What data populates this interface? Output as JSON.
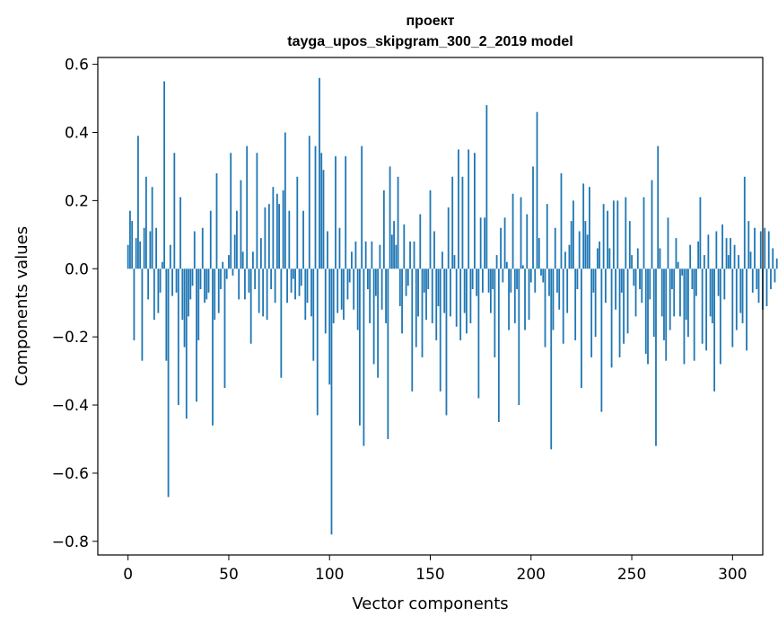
{
  "chart_data": {
    "type": "bar",
    "title_lines": [
      "проект",
      "tayga_upos_skipgram_300_2_2019 model"
    ],
    "xlabel": "Vector components",
    "ylabel": "Components values",
    "xlim": [
      -15,
      315
    ],
    "ylim": [
      -0.84,
      0.62
    ],
    "xticks": [
      0,
      50,
      100,
      150,
      200,
      250,
      300
    ],
    "xtick_labels": [
      "0",
      "50",
      "100",
      "150",
      "200",
      "250",
      "300"
    ],
    "yticks": [
      0.6,
      0.4,
      0.2,
      0.0,
      -0.2,
      -0.4,
      -0.6,
      -0.8
    ],
    "ytick_labels": [
      "0.6",
      "0.4",
      "0.2",
      "0.0",
      "−0.2",
      "−0.4",
      "−0.6",
      "−0.8"
    ],
    "bar_color": "#1f77b4",
    "values": [
      0.07,
      0.17,
      0.14,
      -0.21,
      0.09,
      0.39,
      0.08,
      -0.27,
      0.12,
      0.27,
      -0.09,
      0.11,
      0.24,
      -0.15,
      0.12,
      -0.13,
      -0.07,
      0.02,
      0.55,
      -0.27,
      -0.67,
      0.07,
      -0.08,
      0.34,
      -0.07,
      -0.4,
      0.21,
      -0.15,
      -0.23,
      -0.44,
      -0.14,
      -0.09,
      -0.05,
      0.11,
      -0.39,
      -0.21,
      -0.06,
      0.12,
      -0.1,
      -0.09,
      -0.07,
      0.17,
      -0.46,
      -0.15,
      0.28,
      -0.13,
      -0.06,
      0.02,
      -0.35,
      -0.03,
      0.04,
      0.34,
      -0.02,
      0.1,
      0.17,
      -0.09,
      0.26,
      0.05,
      -0.09,
      0.36,
      -0.07,
      -0.22,
      0.05,
      -0.06,
      0.34,
      -0.13,
      0.09,
      -0.14,
      0.18,
      -0.15,
      0.19,
      -0.06,
      0.24,
      -0.1,
      0.22,
      0.19,
      -0.32,
      0.23,
      0.4,
      -0.1,
      0.17,
      -0.07,
      -0.03,
      -0.09,
      0.27,
      -0.08,
      -0.05,
      0.17,
      -0.15,
      -0.1,
      0.39,
      -0.14,
      -0.27,
      0.36,
      -0.43,
      0.56,
      0.34,
      0.29,
      -0.19,
      0.11,
      -0.34,
      -0.78,
      -0.16,
      0.33,
      -0.13,
      0.12,
      -0.12,
      -0.15,
      0.33,
      -0.09,
      -0.04,
      0.05,
      -0.12,
      0.08,
      -0.18,
      -0.46,
      0.36,
      -0.52,
      0.08,
      -0.06,
      -0.16,
      0.08,
      -0.28,
      -0.08,
      -0.32,
      0.07,
      -0.12,
      0.23,
      -0.16,
      -0.5,
      0.3,
      0.1,
      0.14,
      0.07,
      0.27,
      -0.11,
      -0.19,
      0.13,
      -0.08,
      -0.05,
      0.08,
      -0.36,
      0.08,
      -0.23,
      -0.14,
      0.16,
      -0.26,
      -0.07,
      -0.15,
      -0.06,
      0.23,
      -0.16,
      0.11,
      -0.21,
      -0.11,
      -0.36,
      0.05,
      -0.13,
      -0.43,
      0.18,
      -0.14,
      0.27,
      0.04,
      -0.17,
      0.35,
      -0.21,
      0.27,
      -0.13,
      -0.19,
      0.35,
      -0.16,
      -0.06,
      0.34,
      -0.08,
      -0.38,
      0.15,
      -0.07,
      0.15,
      0.48,
      -0.07,
      -0.13,
      -0.06,
      -0.26,
      0.04,
      -0.45,
      0.12,
      -0.04,
      0.15,
      0.02,
      -0.18,
      -0.07,
      0.22,
      -0.16,
      -0.06,
      -0.4,
      0.21,
      0.01,
      -0.18,
      0.16,
      -0.15,
      -0.04,
      0.3,
      -0.07,
      0.46,
      0.09,
      -0.02,
      -0.04,
      -0.23,
      0.19,
      -0.08,
      -0.53,
      -0.18,
      0.12,
      -0.07,
      -0.12,
      0.28,
      -0.22,
      0.05,
      -0.13,
      0.07,
      0.14,
      0.2,
      -0.21,
      -0.06,
      0.11,
      -0.35,
      0.25,
      0.14,
      0.1,
      0.24,
      -0.26,
      -0.07,
      -0.2,
      0.06,
      0.08,
      -0.42,
      0.19,
      -0.1,
      0.17,
      0.06,
      -0.29,
      0.2,
      -0.12,
      0.2,
      -0.26,
      -0.07,
      -0.22,
      0.21,
      -0.19,
      0.14,
      0.04,
      -0.05,
      -0.14,
      0.06,
      -0.06,
      -0.1,
      0.21,
      -0.25,
      -0.28,
      -0.09,
      0.26,
      -0.2,
      -0.52,
      0.36,
      0.06,
      -0.14,
      -0.21,
      -0.27,
      0.15,
      -0.18,
      -0.06,
      -0.14,
      0.09,
      0.02,
      -0.14,
      -0.02,
      -0.28,
      -0.15,
      -0.2,
      0.07,
      -0.06,
      -0.27,
      -0.08,
      0.08,
      0.21,
      -0.22,
      0.04,
      -0.24,
      0.1,
      -0.14,
      -0.16,
      -0.36,
      0.11,
      -0.08,
      -0.28,
      0.13,
      -0.09,
      0.09,
      0.04,
      0.09,
      -0.23,
      0.07,
      -0.18,
      0.04,
      -0.13,
      -0.16,
      0.27,
      -0.24,
      0.14,
      0.05,
      -0.07,
      0.12,
      -0.06,
      -0.1,
      0.11,
      -0.12,
      0.12,
      -0.11,
      0.11,
      -0.06,
      0.06,
      -0.04,
      0.03
    ]
  }
}
